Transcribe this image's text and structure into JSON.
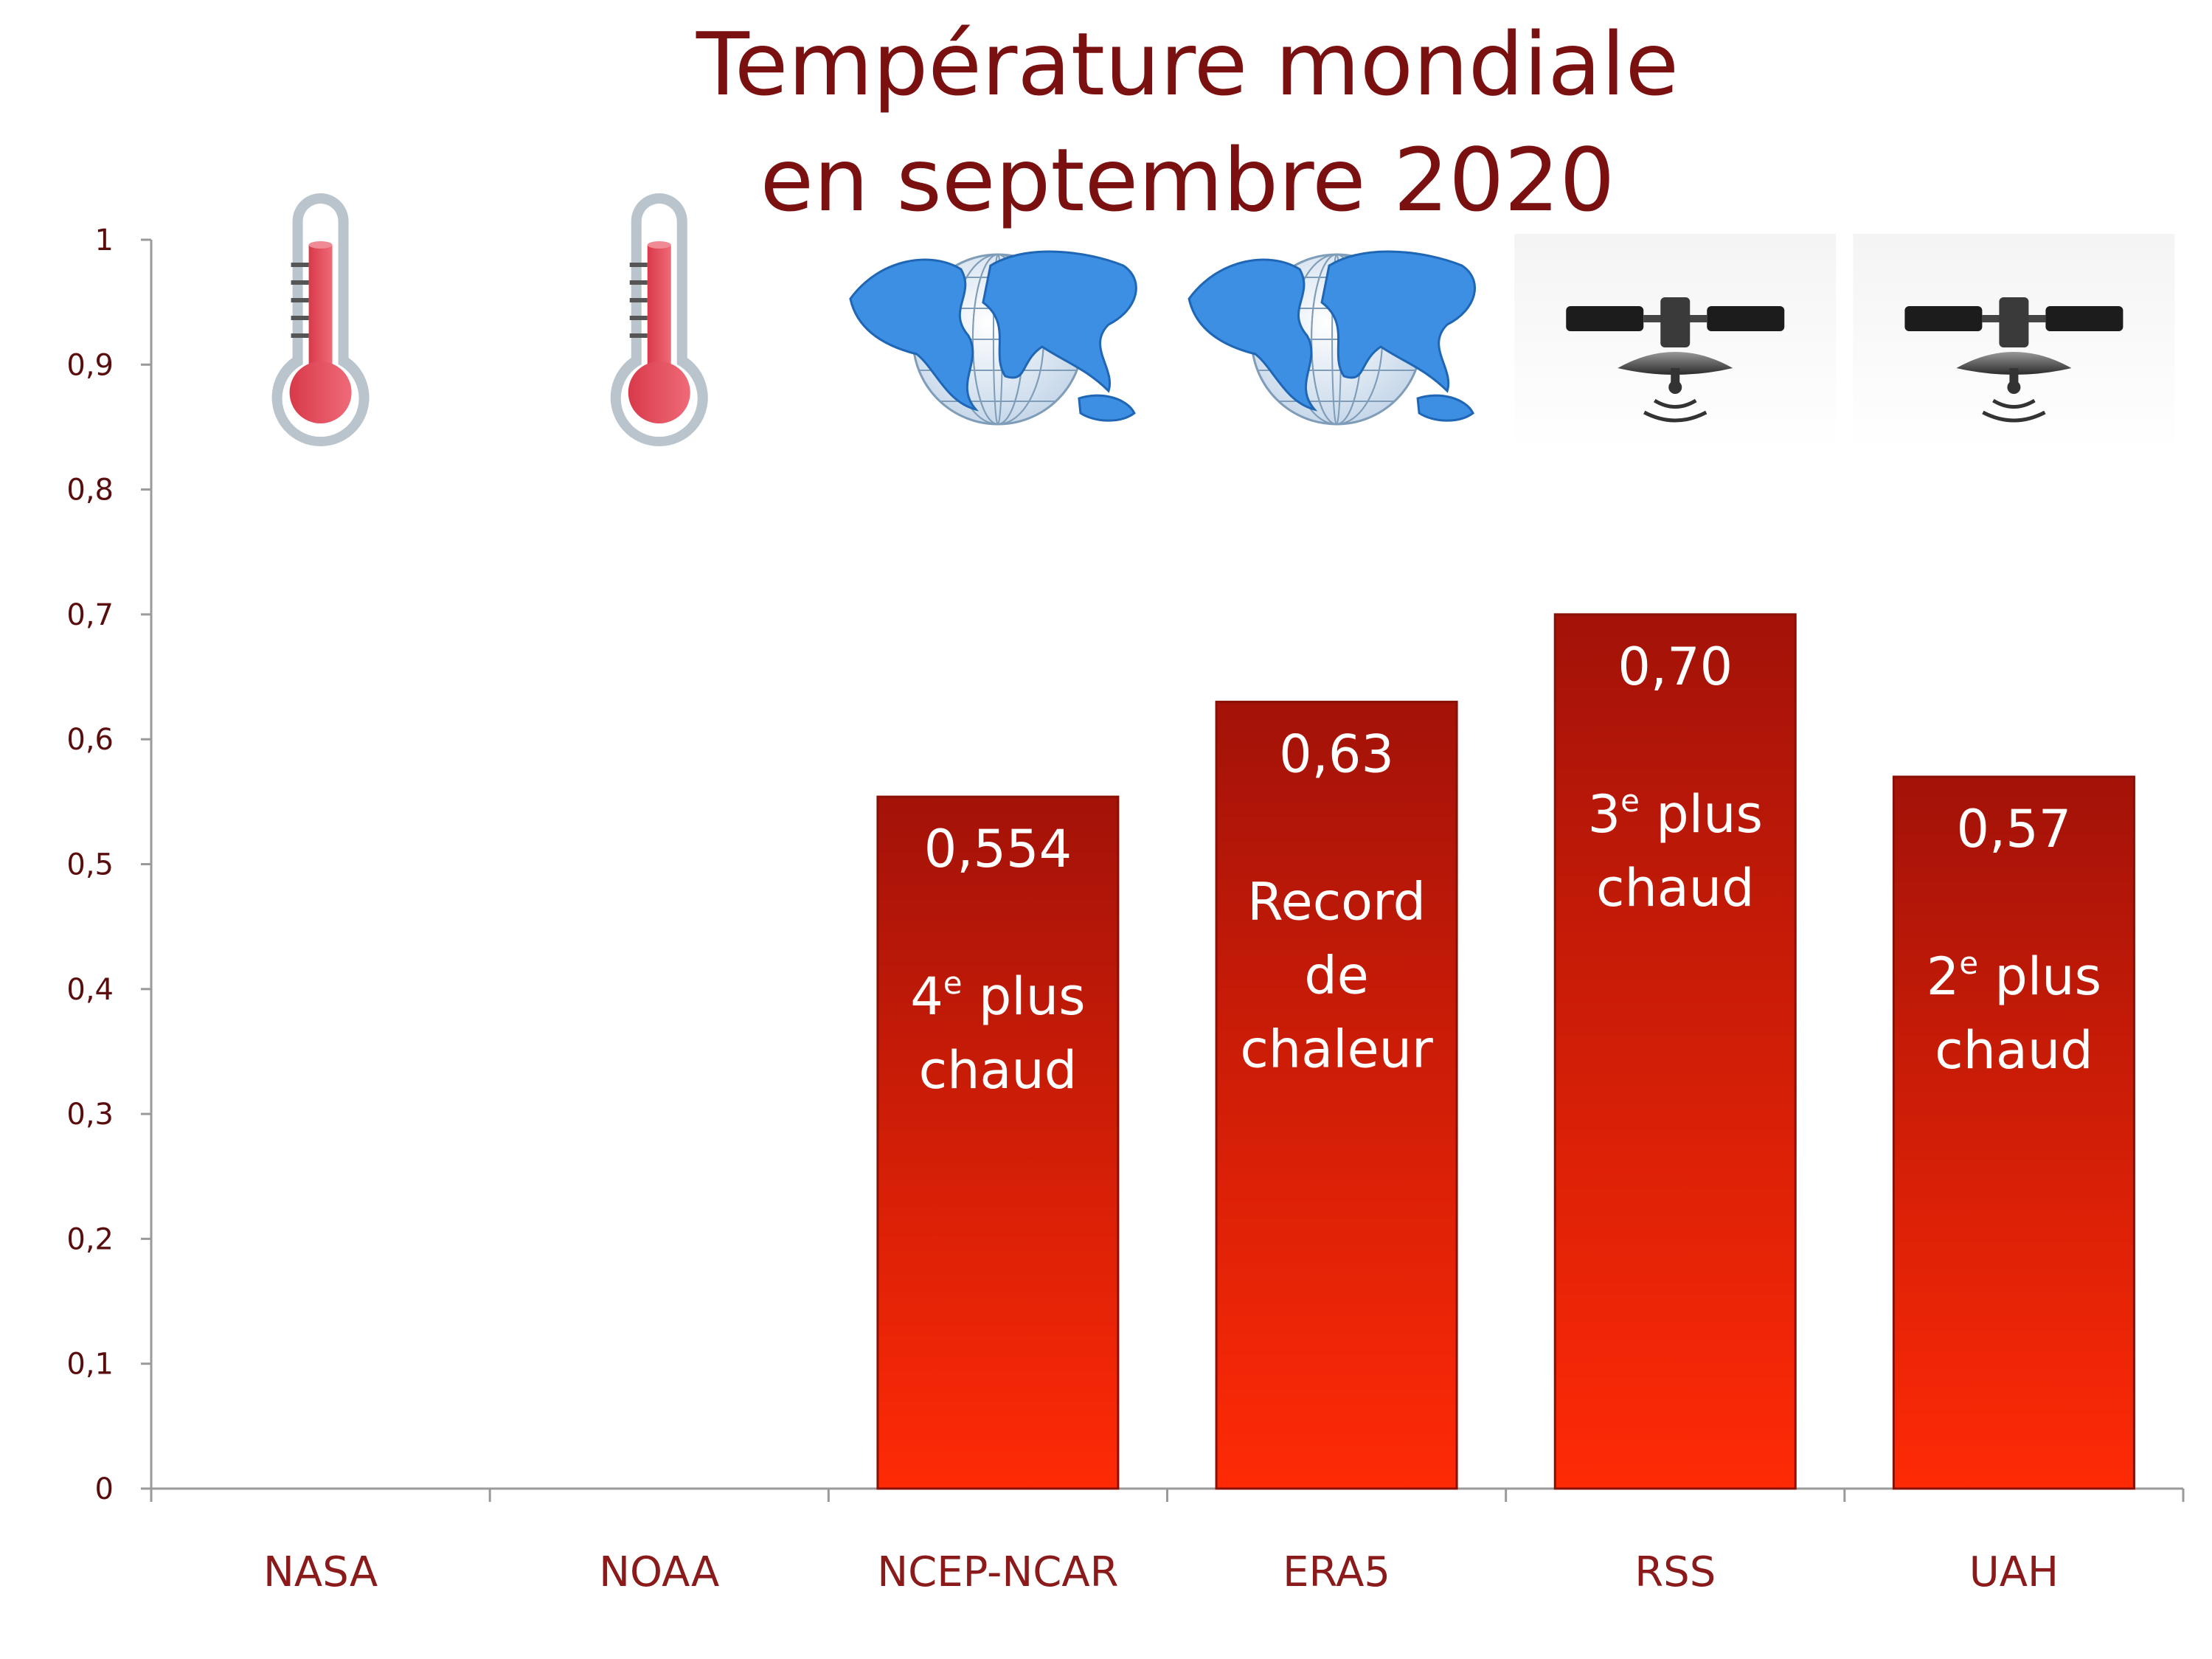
{
  "chart_data": {
    "type": "bar",
    "title_lines": [
      "Température mondiale",
      "en septembre 2020"
    ],
    "categories": [
      "NASA",
      "NOAA",
      "NCEP-NCAR",
      "ERA5",
      "RSS",
      "UAH"
    ],
    "values": [
      null,
      null,
      0.554,
      0.63,
      0.7,
      0.57
    ],
    "bar_labels": [
      [],
      [],
      [
        {
          "text": "0,554"
        },
        {
          "text": ""
        },
        {
          "text": "4",
          "sup": "e",
          "rest": " plus"
        },
        {
          "text": "chaud"
        }
      ],
      [
        {
          "text": "0,63"
        },
        {
          "text": ""
        },
        {
          "text": "Record"
        },
        {
          "text": "de"
        },
        {
          "text": "chaleur"
        }
      ],
      [
        {
          "text": "0,70"
        },
        {
          "text": ""
        },
        {
          "text": "3",
          "sup": "e",
          "rest": " plus"
        },
        {
          "text": "chaud"
        }
      ],
      [
        {
          "text": "0,57"
        },
        {
          "text": ""
        },
        {
          "text": "2",
          "sup": "e",
          "rest": " plus"
        },
        {
          "text": "chaud"
        }
      ]
    ],
    "icons": [
      "thermometer-icon",
      "thermometer-icon",
      "globe-icon",
      "globe-icon",
      "satellite-icon",
      "satellite-icon"
    ],
    "yticks": [
      "0",
      "0,1",
      "0,2",
      "0,3",
      "0,4",
      "0,5",
      "0,6",
      "0,7",
      "0,8",
      "0,9",
      "1"
    ],
    "ylim": [
      0,
      1
    ],
    "grid": false,
    "colors": {
      "bar_top": "#a31208",
      "bar_bottom": "#ff2a06",
      "title": "#7a1010",
      "axis_text": "#8b1a1a"
    }
  }
}
